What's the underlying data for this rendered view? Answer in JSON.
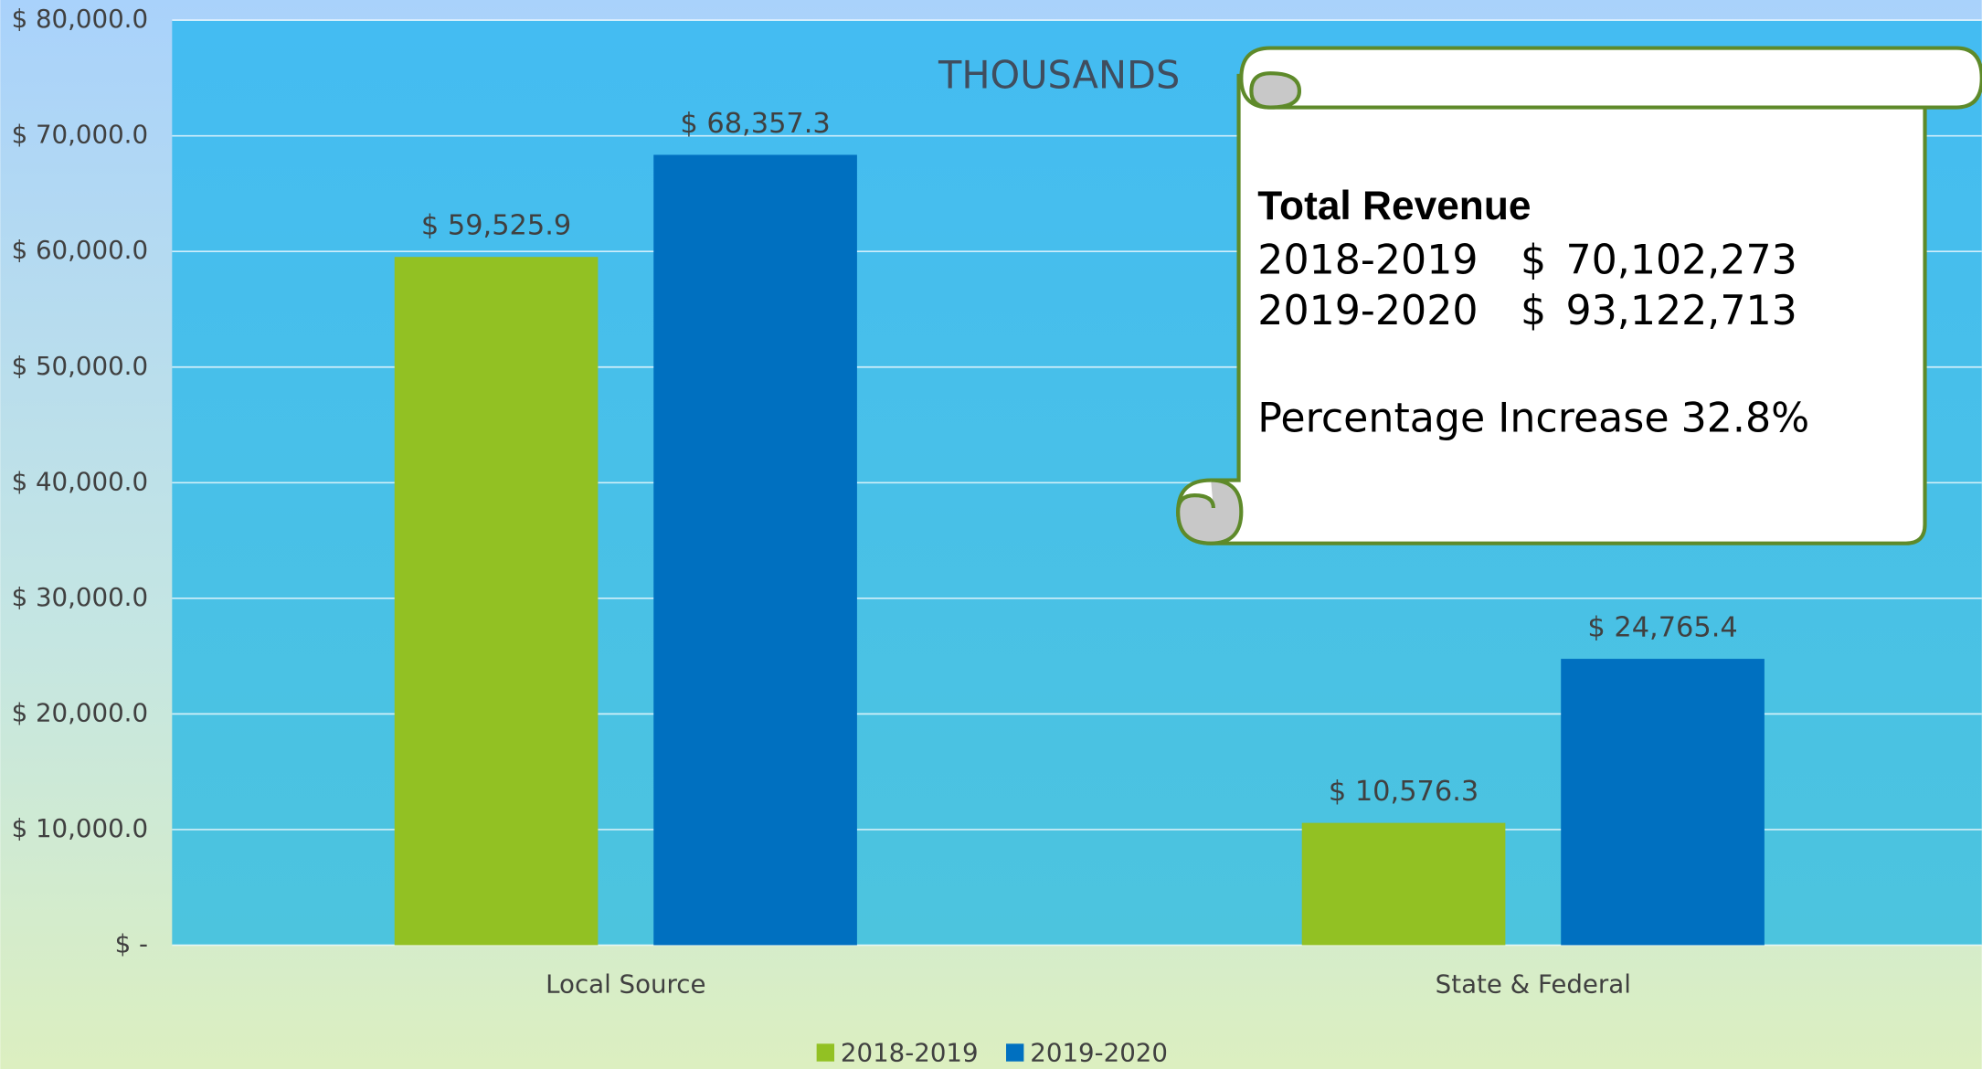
{
  "chart_data": {
    "type": "bar",
    "title": "THOUSANDS",
    "categories": [
      "Local Source",
      "State & Federal"
    ],
    "series": [
      {
        "name": "2018-2019",
        "color": "#92c123",
        "values": [
          59525.9,
          10576.3
        ],
        "value_labels": [
          "$ 59,525.9",
          "$ 10,576.3"
        ]
      },
      {
        "name": "2019-2020",
        "color": "#0070c0",
        "values": [
          68357.3,
          24765.4
        ],
        "value_labels": [
          "$ 68,357.3",
          "$ 24,765.4"
        ]
      }
    ],
    "ylim": [
      0,
      80000
    ],
    "yticks": [
      {
        "value": 0,
        "label": "$ -"
      },
      {
        "value": 10000,
        "label": "$ 10,000.0"
      },
      {
        "value": 20000,
        "label": "$ 20,000.0"
      },
      {
        "value": 30000,
        "label": "$ 30,000.0"
      },
      {
        "value": 40000,
        "label": "$ 40,000.0"
      },
      {
        "value": 50000,
        "label": "$ 50,000.0"
      },
      {
        "value": 60000,
        "label": "$ 60,000.0"
      },
      {
        "value": 70000,
        "label": "$ 70,000.0"
      },
      {
        "value": 80000,
        "label": "$ 80,000.0"
      }
    ],
    "grid": true,
    "legend": "bottom",
    "annotation": {
      "heading": "Total Revenue",
      "rows": [
        [
          "2018-2019",
          "$",
          "70,102,273"
        ],
        [
          "2019-2020",
          "$",
          "93,122,713"
        ]
      ],
      "increase_label": "Percentage Increase",
      "increase_value": "32.8%"
    }
  }
}
